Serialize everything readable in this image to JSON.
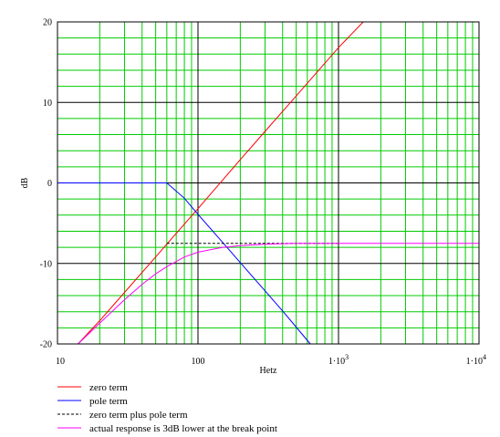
{
  "chart_data": {
    "type": "line",
    "xscale": "log",
    "xlim": [
      10,
      10000
    ],
    "ylim": [
      -20,
      20
    ],
    "xlabel": "Hetz",
    "ylabel": "dB",
    "grid": true,
    "legend_placement": "bottom-left",
    "x_ticks": [
      {
        "value": 10,
        "base": "10",
        "exp": ""
      },
      {
        "value": 100,
        "base": "100",
        "exp": ""
      },
      {
        "value": 1000,
        "base": "1·10",
        "exp": "3"
      },
      {
        "value": 10000,
        "base": "1·10",
        "exp": "4"
      }
    ],
    "y_ticks": [
      {
        "value": 20,
        "label": "20"
      },
      {
        "value": 10,
        "label": "10"
      },
      {
        "value": 0,
        "label": "0"
      },
      {
        "value": -10,
        "label": "-10"
      },
      {
        "value": -20,
        "label": "-20"
      }
    ],
    "series": [
      {
        "name": "zero term",
        "color": "#ff0000",
        "dash": "solid",
        "x": [
          14,
          20,
          30,
          50,
          60,
          100,
          200,
          300,
          500,
          1000,
          1500
        ],
        "y": [
          -20,
          -17.1,
          -13.6,
          -9.2,
          -7.6,
          -3.2,
          2.9,
          6.4,
          10.8,
          16.8,
          20
        ]
      },
      {
        "name": "pole term",
        "color": "#0000ff",
        "dash": "solid",
        "x": [
          10,
          30,
          60,
          80,
          100,
          150,
          200,
          300,
          400,
          500,
          630
        ],
        "y": [
          0,
          0,
          0,
          -1.9,
          -3.9,
          -7.4,
          -9.9,
          -13.4,
          -15.9,
          -17.9,
          -20
        ]
      },
      {
        "name": "zero term plus pole term",
        "color": "#000000",
        "dash": "dashed",
        "x": [
          60,
          100,
          200,
          300,
          500,
          1000
        ],
        "y": [
          -7.5,
          -7.5,
          -7.5,
          -7.5,
          -7.5,
          -7.5
        ]
      },
      {
        "name": "actual response is 3dB lower at the break point",
        "color": "#ff00ff",
        "dash": "solid",
        "x": [
          14,
          20,
          30,
          40,
          50,
          60,
          80,
          100,
          150,
          200,
          300,
          500,
          1000,
          10000
        ],
        "y": [
          -20,
          -17.4,
          -14.5,
          -12.6,
          -11.3,
          -10.4,
          -9.2,
          -8.6,
          -8.0,
          -7.8,
          -7.6,
          -7.5,
          -7.5,
          -7.5
        ]
      }
    ]
  }
}
